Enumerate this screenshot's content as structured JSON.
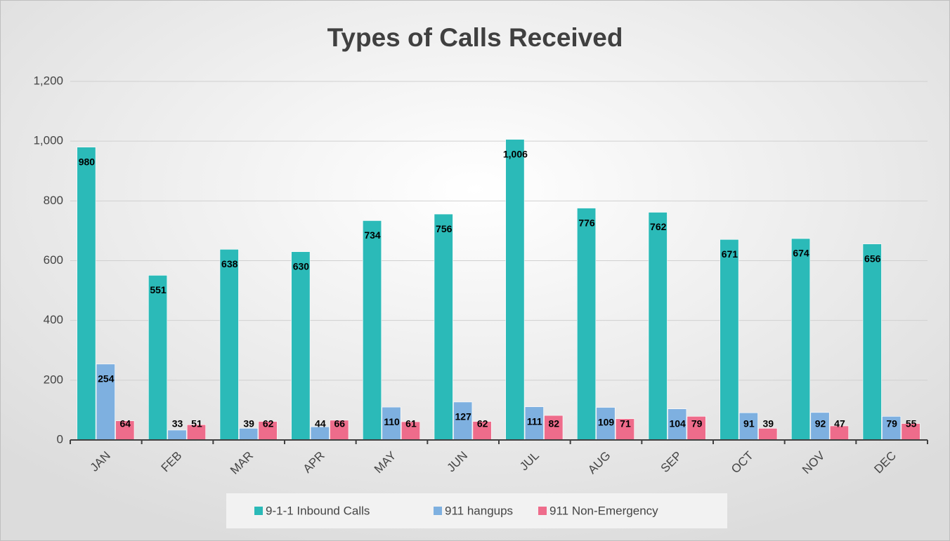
{
  "chart_data": {
    "type": "bar",
    "title": "Types of Calls Received",
    "categories": [
      "JAN",
      "FEB",
      "MAR",
      "APR",
      "MAY",
      "JUN",
      "JUL",
      "AUG",
      "SEP",
      "OCT",
      "NOV",
      "DEC"
    ],
    "series": [
      {
        "name": "9-1-1 Inbound Calls",
        "color": "#2bbab8",
        "values": [
          980,
          551,
          638,
          630,
          734,
          756,
          1006,
          776,
          762,
          671,
          674,
          656
        ],
        "value_labels": [
          "980",
          "551",
          "638",
          "630",
          "734",
          "756",
          "1,006",
          "776",
          "762",
          "671",
          "674",
          "656"
        ]
      },
      {
        "name": "911 hangups",
        "color": "#7eb0e0",
        "values": [
          254,
          33,
          39,
          44,
          110,
          127,
          111,
          109,
          104,
          91,
          92,
          79
        ]
      },
      {
        "name": "911 Non-Emergency",
        "color": "#ee6c8b",
        "values": [
          64,
          51,
          62,
          66,
          61,
          62,
          82,
          71,
          79,
          39,
          47,
          55
        ]
      }
    ],
    "ylim": [
      0,
      1200
    ],
    "yticks": [
      0,
      200,
      400,
      600,
      800,
      {
        "value": 1000,
        "label": "1,000"
      },
      {
        "value": 1200,
        "label": "1,200"
      }
    ],
    "grid": true,
    "legend": "bottom"
  }
}
